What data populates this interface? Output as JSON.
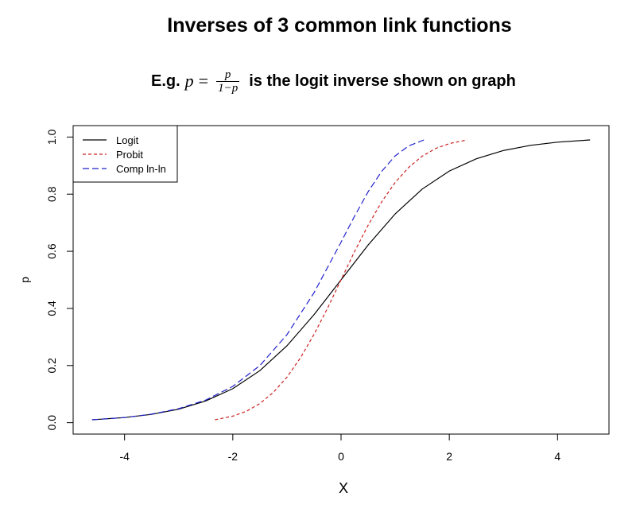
{
  "chart_data": {
    "type": "line",
    "title": "Inverses of 3 common link functions",
    "subtitle": {
      "prefix": "E.g.",
      "var": "p",
      "eq": "=",
      "frac_num": "p",
      "frac_den": "1−p",
      "suffix": "is the logit inverse shown on graph"
    },
    "xlabel": "X",
    "ylabel": "p",
    "xlim": [
      -4.95,
      4.95
    ],
    "ylim": [
      -0.04,
      1.04
    ],
    "xticks": [
      -4,
      -2,
      0,
      2,
      4
    ],
    "yticks": [
      0.0,
      0.2,
      0.4,
      0.6,
      0.8,
      1.0
    ],
    "xtick_labels": [
      "-4",
      "-2",
      "0",
      "2",
      "4"
    ],
    "ytick_labels": [
      "0.0",
      "0.2",
      "0.4",
      "0.6",
      "0.8",
      "1.0"
    ],
    "grid": false,
    "legend_position": "top-left",
    "series": [
      {
        "name": "Logit",
        "color": "#000000",
        "dash": "solid",
        "x": [
          -4.6,
          -4.0,
          -3.5,
          -3.0,
          -2.5,
          -2.0,
          -1.5,
          -1.0,
          -0.5,
          0.0,
          0.5,
          1.0,
          1.5,
          2.0,
          2.5,
          3.0,
          3.5,
          4.0,
          4.6
        ],
        "y": [
          0.01,
          0.018,
          0.029,
          0.047,
          0.076,
          0.119,
          0.182,
          0.269,
          0.378,
          0.5,
          0.622,
          0.731,
          0.818,
          0.881,
          0.924,
          0.953,
          0.971,
          0.982,
          0.99
        ]
      },
      {
        "name": "Probit",
        "color": "#cc2222",
        "dash": "short",
        "x": [
          -2.33,
          -2.0,
          -1.75,
          -1.5,
          -1.25,
          -1.0,
          -0.75,
          -0.5,
          -0.25,
          0.0,
          0.25,
          0.5,
          0.75,
          1.0,
          1.25,
          1.5,
          1.75,
          2.0,
          2.33
        ],
        "y": [
          0.01,
          0.023,
          0.04,
          0.067,
          0.106,
          0.159,
          0.227,
          0.309,
          0.401,
          0.5,
          0.599,
          0.691,
          0.773,
          0.841,
          0.894,
          0.933,
          0.96,
          0.977,
          0.99
        ]
      },
      {
        "name": "Comp ln-ln",
        "color": "#2222cc",
        "dash": "long",
        "x": [
          -4.6,
          -4.0,
          -3.5,
          -3.0,
          -2.5,
          -2.0,
          -1.5,
          -1.0,
          -0.5,
          0.0,
          0.25,
          0.5,
          0.75,
          1.0,
          1.25,
          1.53
        ],
        "y": [
          0.01,
          0.018,
          0.03,
          0.049,
          0.079,
          0.127,
          0.2,
          0.308,
          0.455,
          0.632,
          0.723,
          0.808,
          0.88,
          0.934,
          0.969,
          0.99
        ]
      }
    ]
  }
}
